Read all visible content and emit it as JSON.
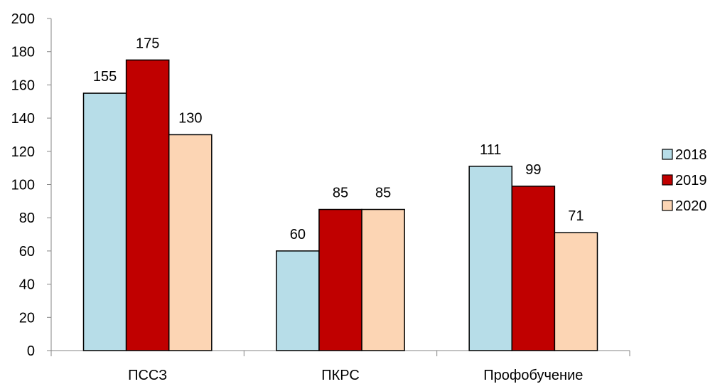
{
  "chart_data": {
    "type": "bar",
    "categories": [
      "ПССЗ",
      "ПКРС",
      "Профобучение"
    ],
    "series": [
      {
        "name": "2018",
        "values": [
          155,
          60,
          111
        ],
        "color": "#b7dde8"
      },
      {
        "name": "2019",
        "values": [
          175,
          85,
          99
        ],
        "color": "#c00000"
      },
      {
        "name": "2020",
        "values": [
          130,
          85,
          71
        ],
        "color": "#fcd5b4"
      }
    ],
    "yticks": [
      0,
      20,
      40,
      60,
      80,
      100,
      120,
      140,
      160,
      180,
      200
    ],
    "ylim": [
      0,
      200
    ],
    "title": "",
    "xlabel": "",
    "ylabel": "",
    "legend_position": "right",
    "grid": false
  }
}
